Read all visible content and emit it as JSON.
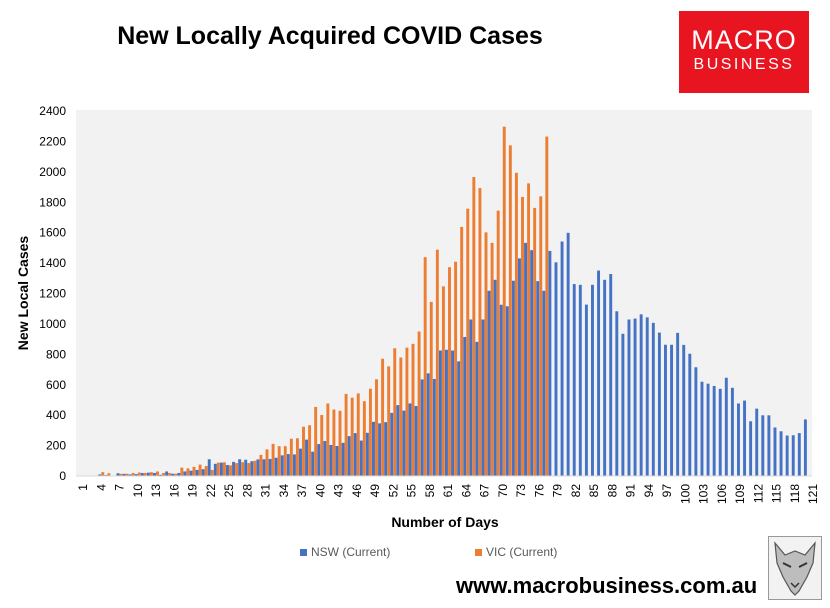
{
  "header": {
    "title": "New Locally Acquired COVID Cases",
    "logo_line1": "MACRO",
    "logo_line2": "BUSINESS"
  },
  "footer": {
    "url": "www.macrobusiness.com.au"
  },
  "colors": {
    "nsw": "#4472C4",
    "vic": "#ED7D31",
    "logo_bg": "#E8141F"
  },
  "chart_data": {
    "type": "bar",
    "xlabel": "Number of Days",
    "ylabel": "New Local Cases",
    "ylim": [
      0,
      2400
    ],
    "yticks": [
      0,
      200,
      400,
      600,
      800,
      1000,
      1200,
      1400,
      1600,
      1800,
      2000,
      2200,
      2400
    ],
    "xticks": [
      1,
      4,
      7,
      10,
      13,
      16,
      19,
      22,
      25,
      28,
      31,
      34,
      37,
      40,
      43,
      46,
      49,
      52,
      55,
      58,
      61,
      64,
      67,
      70,
      73,
      76,
      79,
      82,
      85,
      88,
      91,
      94,
      97,
      100,
      103,
      106,
      109,
      112,
      115,
      118,
      121
    ],
    "legend_position": "bottom",
    "grid": false,
    "annotations": [
      {
        "day": 79,
        "series": "VIC (Current)",
        "text": "2232"
      },
      {
        "day": 122,
        "series": "NSW (Current)",
        "text": "372"
      }
    ],
    "series": [
      {
        "name": "NSW (Current)",
        "values": [
          3,
          1,
          0,
          10,
          6,
          0,
          18,
          14,
          10,
          12,
          20,
          22,
          20,
          8,
          30,
          15,
          20,
          30,
          35,
          40,
          45,
          110,
          80,
          88,
          72,
          93,
          110,
          107,
          97,
          109,
          110,
          112,
          120,
          136,
          144,
          142,
          180,
          239,
          160,
          210,
          230,
          204,
          197,
          218,
          262,
          282,
          233,
          284,
          356,
          346,
          354,
          415,
          466,
          430,
          477,
          460,
          635,
          675,
          638,
          825,
          830,
          825,
          754,
          914,
          1029,
          882,
          1029,
          1218,
          1290,
          1126,
          1116,
          1284,
          1431,
          1533,
          1485,
          1281,
          1218,
          1480,
          1405,
          1542,
          1599,
          1262,
          1257,
          1127,
          1257,
          1351,
          1290,
          1328,
          1083,
          935,
          1029,
          1035,
          1063,
          1043,
          1007,
          943,
          863,
          863,
          941,
          862,
          804,
          715,
          620,
          607,
          592,
          573,
          646,
          580,
          477,
          496,
          360,
          443,
          399,
          399,
          319,
          294,
          266,
          268,
          282,
          372
        ]
      },
      {
        "name": "VIC (Current)",
        "values": [
          0,
          0,
          0,
          25,
          18,
          0,
          14,
          15,
          20,
          23,
          20,
          25,
          30,
          20,
          20,
          15,
          55,
          50,
          60,
          75,
          66,
          40,
          88,
          90,
          70,
          85,
          91,
          85,
          100,
          139,
          175,
          211,
          196,
          196,
          245,
          248,
          324,
          334,
          454,
          401,
          477,
          437,
          429,
          540,
          515,
          543,
          492,
          574,
          636,
          771,
          721,
          840,
          779,
          844,
          869,
          950,
          1439,
          1145,
          1488,
          1247,
          1373,
          1409,
          1638,
          1758,
          1966,
          1893,
          1602,
          1533,
          1745,
          2297,
          2174,
          1994,
          1835,
          1924,
          1763,
          1839,
          2232
        ]
      }
    ]
  }
}
